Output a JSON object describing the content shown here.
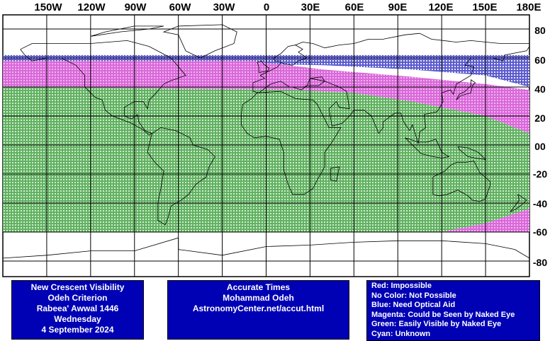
{
  "map": {
    "lon_labels": [
      "150W",
      "120W",
      "90W",
      "60W",
      "30W",
      "0",
      "30E",
      "60E",
      "90E",
      "120E",
      "150E",
      "180E"
    ],
    "lat_labels": [
      "80",
      "60",
      "40",
      "20",
      "00",
      "-20",
      "-40",
      "-60",
      "-80"
    ],
    "zones": {
      "blue": {
        "from_lat": 62,
        "to_lat": 58,
        "color": "#0000b4",
        "label": "Need Optical Aid"
      },
      "magenta": {
        "color": "#cc33cc",
        "label": "Could be Seen by Naked Eye"
      },
      "green": {
        "color": "#1a8a1a",
        "label": "Easily Visible by Naked Eye"
      }
    }
  },
  "info_panel": {
    "line1": "New Crescent Visibility",
    "line2": "Odeh Criterion",
    "line3": "Rabeea' Awwal 1446",
    "line4": "Wednesday",
    "line5": "4 September 2024"
  },
  "credit_panel": {
    "line1": "Accurate Times",
    "line2": "Mohammad Odeh",
    "line3": "AstronomyCenter.net/accut.html"
  },
  "legend": {
    "red": "Red: Impossible",
    "none": "No Color: Not Possible",
    "blue": "Blue: Need Optical Aid",
    "magenta": "Magenta: Could be Seen by Naked Eye",
    "green": "Green: Easily Visible by Naked Eye",
    "cyan": "Cyan: Unknown"
  },
  "colors": {
    "panel_bg": "#0000b4",
    "panel_text": "#ffffff",
    "coast": "#000000"
  }
}
